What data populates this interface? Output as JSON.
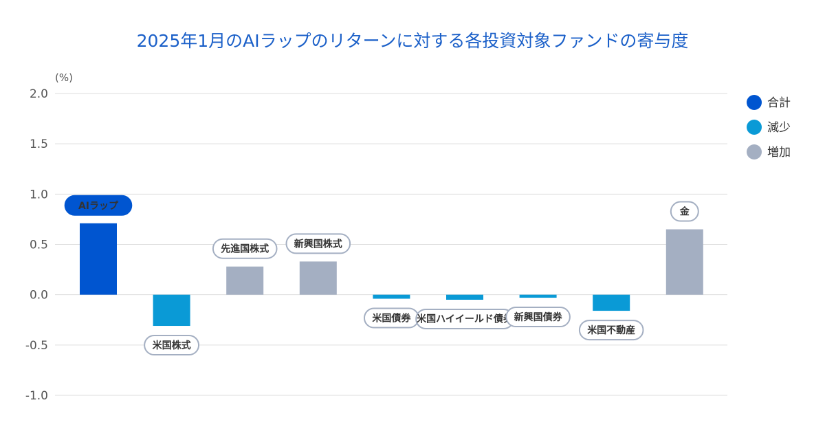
{
  "chart_data": {
    "type": "bar",
    "title": "2025年1月のAIラップのリターンに対する各投資対象ファンドの寄与度",
    "ylabel": "(%)",
    "ylim": [
      -1.0,
      2.0
    ],
    "yticks": [
      "2.0",
      "1.5",
      "1.0",
      "0.5",
      "0.0",
      "-0.5",
      "-1.0"
    ],
    "ytick_values": [
      2.0,
      1.5,
      1.0,
      0.5,
      0.0,
      -0.5,
      -1.0
    ],
    "grid": true,
    "legend_position": "right",
    "categories": [
      "AIラップ",
      "米国株式",
      "先進国株式",
      "新興国株式",
      "米国債券",
      "米国ハイイールド債券",
      "新興国債券",
      "米国不動産",
      "金"
    ],
    "values": [
      0.71,
      -0.31,
      0.28,
      0.33,
      -0.04,
      -0.05,
      -0.03,
      -0.16,
      0.65
    ],
    "groups": [
      "total",
      "decrease",
      "increase",
      "increase",
      "decrease",
      "decrease",
      "decrease",
      "decrease",
      "increase"
    ],
    "legend": [
      {
        "key": "total",
        "label": "合計",
        "color": "#0055d0"
      },
      {
        "key": "decrease",
        "label": "減少",
        "color": "#0a9ad6"
      },
      {
        "key": "increase",
        "label": "増加",
        "color": "#a4afc2"
      }
    ]
  }
}
